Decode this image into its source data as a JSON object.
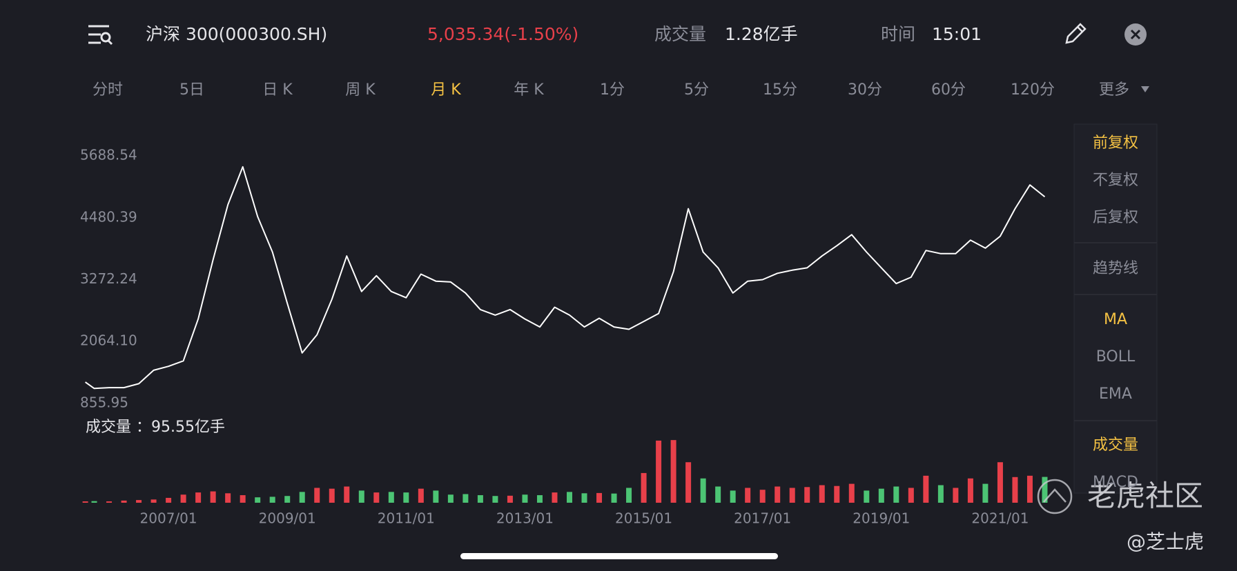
{
  "header": {
    "symbol": "沪深 300(000300.SH)",
    "price": "5,035.34(-1.50%)",
    "volume_label": "成交量",
    "volume": "1.28亿手",
    "time_label": "时间",
    "time": "15:01"
  },
  "tabs": [
    {
      "label": "分时"
    },
    {
      "label": "5日"
    },
    {
      "label": "日 K"
    },
    {
      "label": "周 K"
    },
    {
      "label": "月 K",
      "active": true
    },
    {
      "label": "年 K"
    },
    {
      "label": "1分"
    },
    {
      "label": "5分"
    },
    {
      "label": "15分"
    },
    {
      "label": "30分"
    },
    {
      "label": "60分"
    },
    {
      "label": "120分"
    },
    {
      "label": "更多"
    }
  ],
  "side_menu": [
    {
      "label": "前复权",
      "active": true
    },
    {
      "label": "不复权"
    },
    {
      "label": "后复权"
    },
    {
      "label": "趋势线"
    },
    {
      "label": "MA",
      "active": true
    },
    {
      "label": "BOLL"
    },
    {
      "label": "EMA"
    },
    {
      "label": "成交量",
      "active": true
    },
    {
      "label": "MACD"
    }
  ],
  "watermark": {
    "brand": "老虎社区",
    "author": "@芝士虎"
  },
  "chart_data": [
    {
      "type": "line",
      "x": [
        2005.6,
        2005.75,
        2006,
        2006.25,
        2006.5,
        2006.75,
        2007,
        2007.25,
        2007.5,
        2007.75,
        2008,
        2008.25,
        2008.5,
        2008.75,
        2009,
        2009.25,
        2009.5,
        2009.75,
        2010,
        2010.25,
        2010.5,
        2010.75,
        2011,
        2011.25,
        2011.5,
        2011.75,
        2012,
        2012.25,
        2012.5,
        2012.75,
        2013,
        2013.25,
        2013.5,
        2013.75,
        2014,
        2014.25,
        2014.5,
        2014.75,
        2015,
        2015.25,
        2015.5,
        2015.75,
        2016,
        2016.25,
        2016.5,
        2016.75,
        2017,
        2017.25,
        2017.5,
        2017.75,
        2018,
        2018.25,
        2018.5,
        2018.75,
        2019,
        2019.25,
        2019.5,
        2019.75,
        2020,
        2020.25,
        2020.5,
        2020.75,
        2021,
        2021.25,
        2021.5,
        2021.75
      ],
      "series": [
        {
          "color": "#ffffff",
          "values": [
            1272,
            1148,
            1164,
            1164,
            1241,
            1503,
            1580,
            1687,
            2503,
            3657,
            4736,
            5475,
            4504,
            3811,
            2810,
            1841,
            2195,
            2888,
            3734,
            3041,
            3349,
            3041,
            2919,
            3380,
            3242,
            3226,
            3011,
            2688,
            2580,
            2688,
            2503,
            2349,
            2734,
            2580,
            2349,
            2518,
            2349,
            2303,
            2457,
            2611,
            3426,
            4658,
            3811,
            3503,
            3011,
            3242,
            3272,
            3396,
            3457,
            3503,
            3734,
            3934,
            4150,
            3811,
            3503,
            3196,
            3319,
            3842,
            3780,
            3780,
            4042,
            3888,
            4119,
            4658,
            5120,
            4889
          ]
        }
      ],
      "xlim": [
        2005.5,
        2022.0
      ],
      "xticks": [
        {
          "value": 2007,
          "label": "2007/01"
        },
        {
          "value": 2009,
          "label": "2009/01"
        },
        {
          "value": 2011,
          "label": "2011/01"
        },
        {
          "value": 2013,
          "label": "2013/01"
        },
        {
          "value": 2015,
          "label": "2015/01"
        },
        {
          "value": 2017,
          "label": "2017/01"
        },
        {
          "value": 2019,
          "label": "2019/01"
        },
        {
          "value": 2021,
          "label": "2021/01"
        }
      ],
      "ylim": [
        855.95,
        5688.54
      ],
      "yticks": [
        5688.54,
        4480.39,
        3272.24,
        {
          "value": 2064.1,
          "label": "2064.10"
        },
        855.95
      ]
    },
    {
      "type": "bar",
      "title": "成交量 ：95.55亿手",
      "values": [
        5,
        6,
        5,
        8,
        10,
        12,
        18,
        30,
        38,
        42,
        35,
        28,
        20,
        22,
        25,
        40,
        55,
        52,
        60,
        45,
        38,
        40,
        38,
        52,
        45,
        30,
        32,
        28,
        25,
        26,
        30,
        28,
        38,
        40,
        35,
        36,
        34,
        55,
        110,
        230,
        232,
        150,
        90,
        60,
        45,
        55,
        48,
        60,
        55,
        58,
        65,
        62,
        70,
        45,
        52,
        60,
        55,
        100,
        65,
        55,
        90,
        70,
        150,
        95,
        100,
        95.55
      ],
      "up_color": "#e8404a",
      "down_color": "#4cc474",
      "ylim": [
        0,
        240
      ]
    }
  ]
}
